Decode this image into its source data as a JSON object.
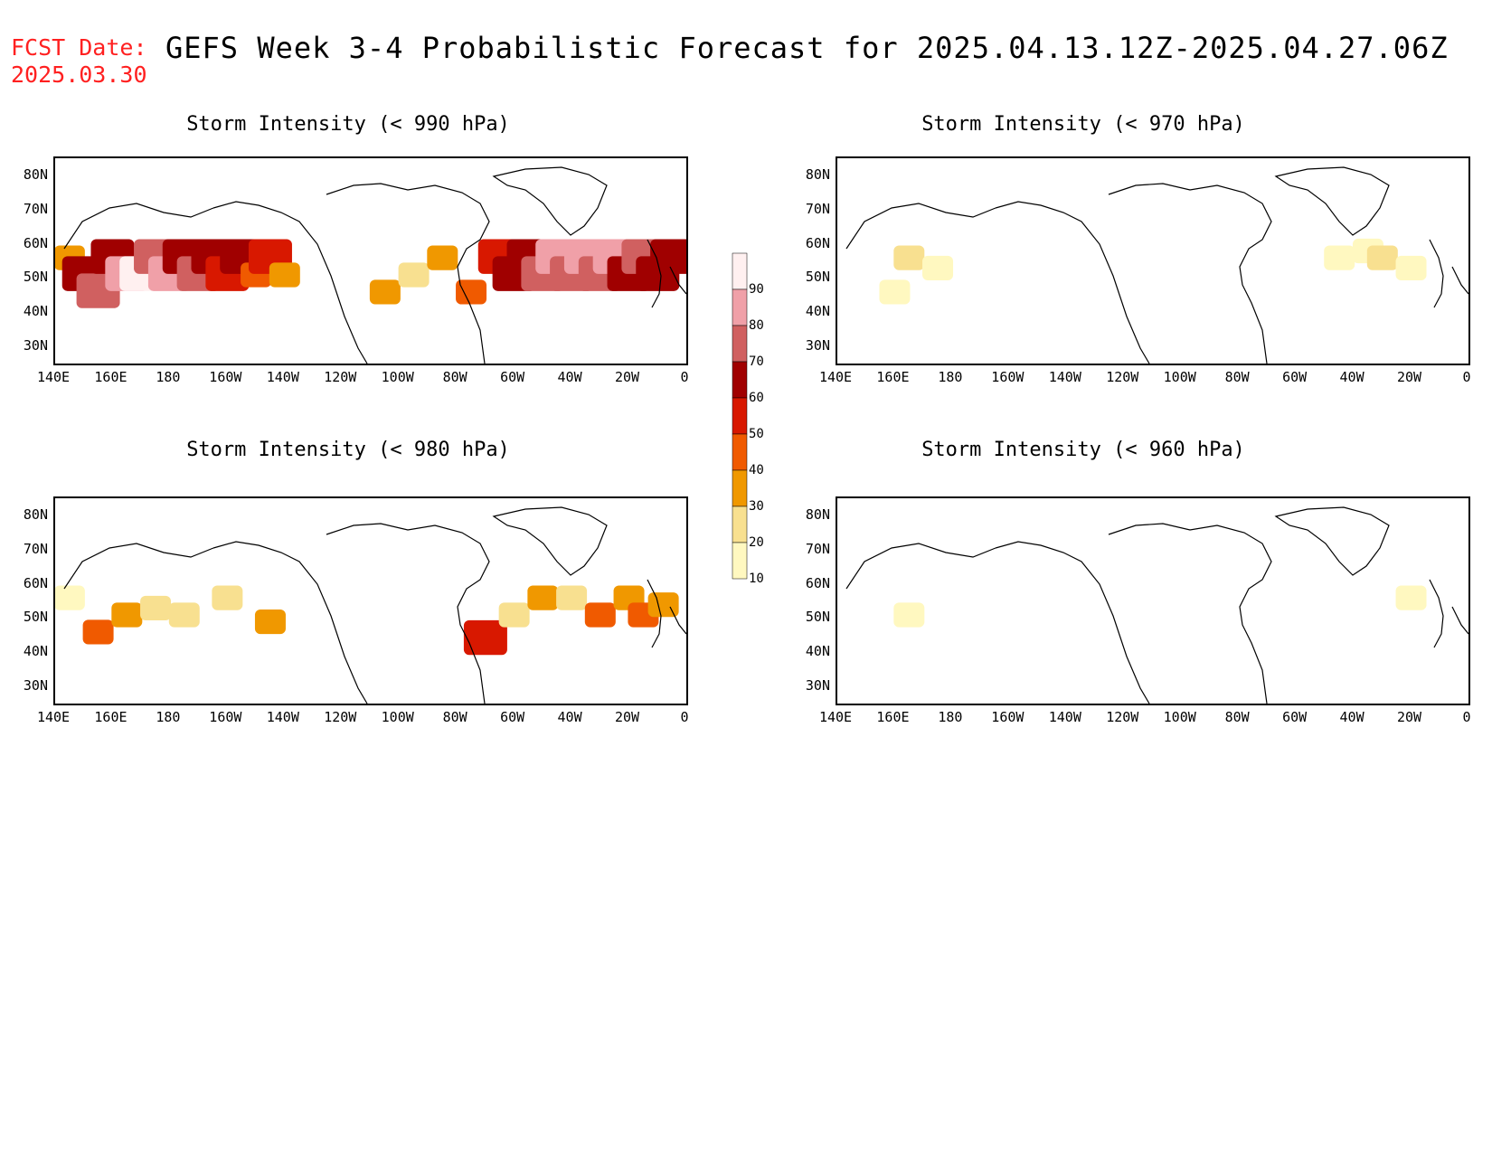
{
  "header": {
    "fcst_label": "FCST Date:",
    "fcst_date": "2025.03.30",
    "title": "GEFS Week 3-4 Probabilistic Forecast for 2025.04.13.12Z-2025.04.27.06Z"
  },
  "axes": {
    "lat_labels": [
      "80N",
      "70N",
      "60N",
      "50N",
      "40N",
      "30N"
    ],
    "lon_labels": [
      "140E",
      "160E",
      "180",
      "160W",
      "140W",
      "120W",
      "100W",
      "80W",
      "60W",
      "40W",
      "20W",
      "0"
    ]
  },
  "colorbar": {
    "labels": [
      "90",
      "80",
      "70",
      "60",
      "50",
      "40",
      "30",
      "20",
      "10"
    ],
    "colors": [
      "#fff0f0",
      "#f0a0a8",
      "#d06060",
      "#a00000",
      "#d81800",
      "#f05a00",
      "#f09800",
      "#f8e090",
      "#fff8c0"
    ]
  },
  "chart_data": [
    {
      "type": "heatmap",
      "title": "Storm Intensity (< 990 hPa)",
      "lon_range": [
        "140E",
        "0"
      ],
      "lat_range": [
        "25N",
        "85N"
      ],
      "cells": [
        {
          "lon": 145,
          "lat": 55,
          "p": 30
        },
        {
          "lon": 150,
          "lat": 50,
          "p": 60
        },
        {
          "lon": 155,
          "lat": 45,
          "p": 70
        },
        {
          "lon": 160,
          "lat": 55,
          "p": 60
        },
        {
          "lon": 165,
          "lat": 50,
          "p": 80
        },
        {
          "lon": 170,
          "lat": 50,
          "p": 90
        },
        {
          "lon": 175,
          "lat": 55,
          "p": 70
        },
        {
          "lon": 180,
          "lat": 50,
          "p": 80
        },
        {
          "lon": -175,
          "lat": 55,
          "p": 60
        },
        {
          "lon": -170,
          "lat": 50,
          "p": 70
        },
        {
          "lon": -165,
          "lat": 55,
          "p": 60
        },
        {
          "lon": -160,
          "lat": 50,
          "p": 50
        },
        {
          "lon": -155,
          "lat": 55,
          "p": 60
        },
        {
          "lon": -150,
          "lat": 50,
          "p": 40
        },
        {
          "lon": -145,
          "lat": 55,
          "p": 50
        },
        {
          "lon": -140,
          "lat": 50,
          "p": 30
        },
        {
          "lon": -105,
          "lat": 45,
          "p": 30
        },
        {
          "lon": -95,
          "lat": 50,
          "p": 20
        },
        {
          "lon": -85,
          "lat": 55,
          "p": 30
        },
        {
          "lon": -75,
          "lat": 45,
          "p": 40
        },
        {
          "lon": -65,
          "lat": 55,
          "p": 50
        },
        {
          "lon": -60,
          "lat": 50,
          "p": 60
        },
        {
          "lon": -55,
          "lat": 55,
          "p": 60
        },
        {
          "lon": -50,
          "lat": 50,
          "p": 70
        },
        {
          "lon": -45,
          "lat": 55,
          "p": 80
        },
        {
          "lon": -40,
          "lat": 50,
          "p": 70
        },
        {
          "lon": -35,
          "lat": 55,
          "p": 80
        },
        {
          "lon": -30,
          "lat": 50,
          "p": 70
        },
        {
          "lon": -25,
          "lat": 55,
          "p": 80
        },
        {
          "lon": -20,
          "lat": 50,
          "p": 60
        },
        {
          "lon": -15,
          "lat": 55,
          "p": 70
        },
        {
          "lon": -10,
          "lat": 50,
          "p": 60
        },
        {
          "lon": -5,
          "lat": 55,
          "p": 60
        }
      ]
    },
    {
      "type": "heatmap",
      "title": "Storm Intensity (< 970 hPa)",
      "lon_range": [
        "140E",
        "0"
      ],
      "lat_range": [
        "25N",
        "85N"
      ],
      "cells": [
        {
          "lon": 165,
          "lat": 55,
          "p": 20
        },
        {
          "lon": 175,
          "lat": 52,
          "p": 10
        },
        {
          "lon": 160,
          "lat": 45,
          "p": 10
        },
        {
          "lon": -35,
          "lat": 57,
          "p": 10
        },
        {
          "lon": -30,
          "lat": 55,
          "p": 20
        },
        {
          "lon": -20,
          "lat": 52,
          "p": 10
        },
        {
          "lon": -45,
          "lat": 55,
          "p": 10
        }
      ]
    },
    {
      "type": "heatmap",
      "title": "Storm Intensity (< 980 hPa)",
      "lon_range": [
        "140E",
        "0"
      ],
      "lat_range": [
        "25N",
        "85N"
      ],
      "cells": [
        {
          "lon": 145,
          "lat": 55,
          "p": 10
        },
        {
          "lon": 155,
          "lat": 45,
          "p": 40
        },
        {
          "lon": 165,
          "lat": 50,
          "p": 30
        },
        {
          "lon": 175,
          "lat": 52,
          "p": 20
        },
        {
          "lon": -175,
          "lat": 50,
          "p": 20
        },
        {
          "lon": -160,
          "lat": 55,
          "p": 20
        },
        {
          "lon": -145,
          "lat": 48,
          "p": 30
        },
        {
          "lon": -70,
          "lat": 43,
          "p": 50
        },
        {
          "lon": -60,
          "lat": 50,
          "p": 20
        },
        {
          "lon": -50,
          "lat": 55,
          "p": 30
        },
        {
          "lon": -40,
          "lat": 55,
          "p": 20
        },
        {
          "lon": -30,
          "lat": 50,
          "p": 40
        },
        {
          "lon": -20,
          "lat": 55,
          "p": 30
        },
        {
          "lon": -15,
          "lat": 50,
          "p": 40
        },
        {
          "lon": -8,
          "lat": 53,
          "p": 30
        }
      ]
    },
    {
      "type": "heatmap",
      "title": "Storm Intensity (< 960 hPa)",
      "lon_range": [
        "140E",
        "0"
      ],
      "lat_range": [
        "25N",
        "85N"
      ],
      "cells": [
        {
          "lon": -20,
          "lat": 55,
          "p": 10
        },
        {
          "lon": 165,
          "lat": 50,
          "p": 10
        }
      ]
    }
  ]
}
